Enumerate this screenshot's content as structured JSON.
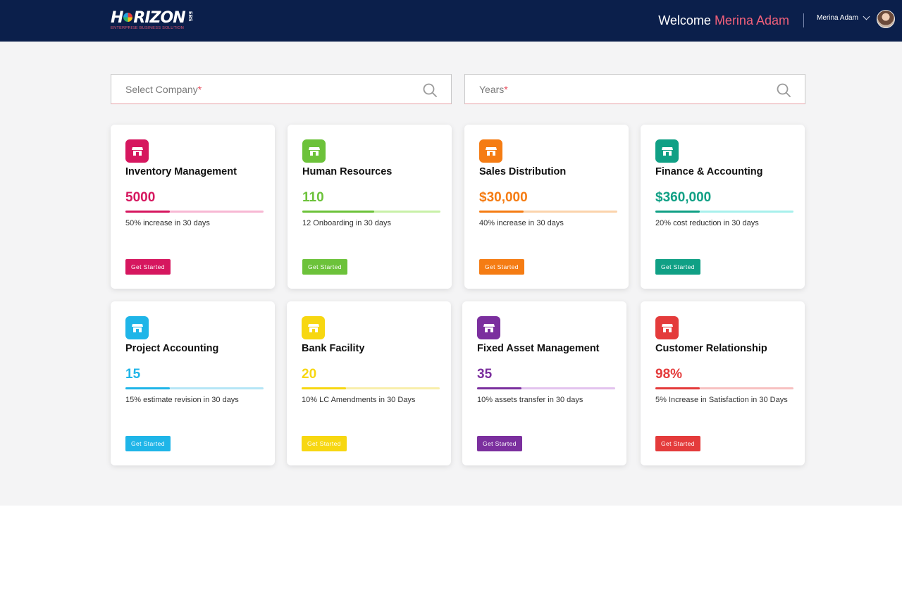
{
  "header": {
    "logo_text_left": "H",
    "logo_text_right": "RIZON",
    "logo_ebs": "EBS",
    "logo_subtitle": "ENTERPRISE BUSINESS SOLUTION",
    "welcome_prefix": "Welcome",
    "welcome_name": "Merina Adam",
    "user_name": "Merina Adam",
    "background_color": "#0b1f4b"
  },
  "filters": {
    "company": {
      "placeholder": "Select Company",
      "required_mark": "*"
    },
    "years": {
      "placeholder": "Years",
      "required_mark": "*"
    }
  },
  "cards": [
    {
      "title": "Inventory Management",
      "value": "5000",
      "progress": 0.32,
      "description": "50% increase in 30 days",
      "button": "Get Started",
      "color": "#d6175f",
      "track_color": "#f7b8d3"
    },
    {
      "title": "Human Resources",
      "value": "110",
      "progress": 0.52,
      "description": "12 Onboarding in 30 days",
      "button": "Get Started",
      "color": "#6cc23a",
      "track_color": "#c8f0a8"
    },
    {
      "title": "Sales Distribution",
      "value": "$30,000",
      "progress": 0.32,
      "description": "40% increase in 30 days",
      "button": "Get Started",
      "color": "#f57c13",
      "track_color": "#fbd3ac"
    },
    {
      "title": "Finance & Accounting",
      "value": "$360,000",
      "progress": 0.32,
      "description": "20% cost reduction in 30 days",
      "button": "Get Started",
      "color": "#10a085",
      "track_color": "#a8f0ec"
    },
    {
      "title": "Project Accounting",
      "value": "15",
      "progress": 0.32,
      "description": "15% estimate revision in 30 days",
      "button": "Get Started",
      "color": "#1fb5e8",
      "track_color": "#b5e6f6"
    },
    {
      "title": "Bank Facility",
      "value": "20",
      "progress": 0.32,
      "description": "10% LC Amendments in 30 Days",
      "button": "Get Started",
      "color": "#f7d711",
      "track_color": "#f8eeaa"
    },
    {
      "title": "Fixed Asset Management",
      "value": "35",
      "progress": 0.32,
      "description": "10% assets transfer in 30 days",
      "button": "Get Started",
      "color": "#7b2f9e",
      "track_color": "#e3c3ee"
    },
    {
      "title": "Customer Relationship",
      "value": "98%",
      "progress": 0.32,
      "description": "5% Increase in Satisfaction in 30 Days",
      "button": "Get Started",
      "color": "#e43b3b",
      "track_color": "#f7c0c0"
    }
  ]
}
